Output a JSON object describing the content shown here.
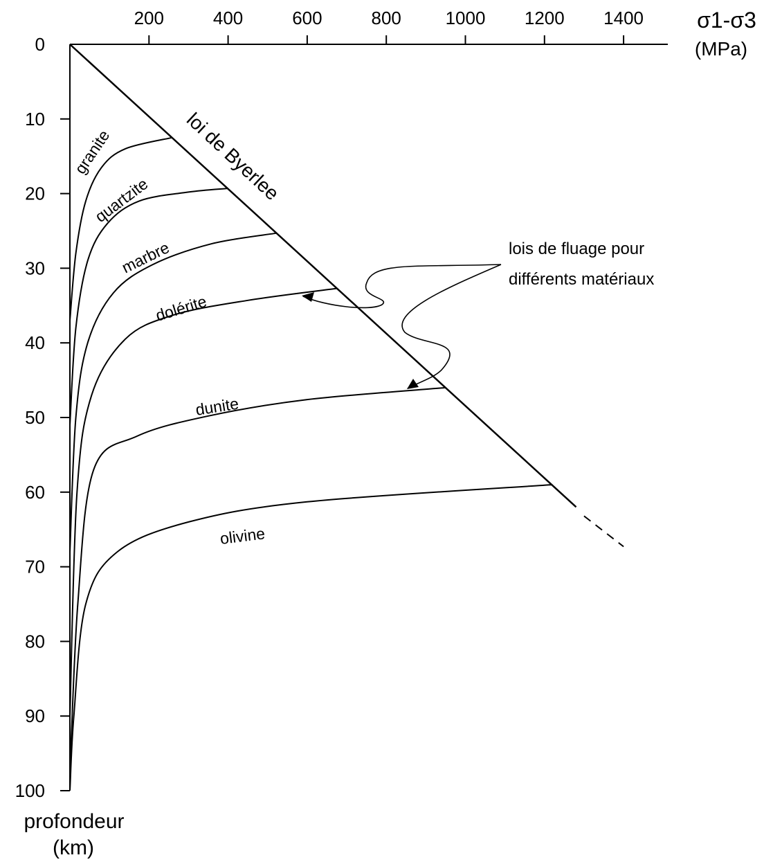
{
  "chart_data": {
    "type": "line",
    "x_axis": {
      "label_line1": "σ1-σ3",
      "label_line2": "(MPa)",
      "position": "top",
      "range": [
        0,
        1500
      ],
      "ticks": [
        200,
        400,
        600,
        800,
        1000,
        1200,
        1400
      ]
    },
    "y_axis": {
      "label_line1": "profondeur",
      "label_line2": "(km)",
      "inverted": true,
      "range": [
        0,
        100
      ],
      "ticks": [
        0,
        10,
        20,
        30,
        40,
        50,
        60,
        70,
        80,
        90,
        100
      ]
    },
    "byerlee": {
      "label": "loi de Byerlee",
      "points": [
        [
          0,
          0
        ],
        [
          1280,
          62
        ]
      ],
      "dashed_extension": [
        [
          1300,
          63.2
        ],
        [
          1400,
          67.3
        ]
      ]
    },
    "series": [
      {
        "name": "granite",
        "points": [
          [
            0,
            37
          ],
          [
            15,
            28
          ],
          [
            40,
            21
          ],
          [
            80,
            16.5
          ],
          [
            140,
            14
          ],
          [
            258,
            12.5
          ]
        ]
      },
      {
        "name": "quartzite",
        "points": [
          [
            0,
            51
          ],
          [
            15,
            38
          ],
          [
            45,
            29
          ],
          [
            95,
            24
          ],
          [
            175,
            21
          ],
          [
            300,
            19.8
          ],
          [
            399,
            19.3
          ]
        ]
      },
      {
        "name": "marbre",
        "points": [
          [
            0,
            68
          ],
          [
            15,
            50
          ],
          [
            45,
            40
          ],
          [
            110,
            33.3
          ],
          [
            210,
            29.5
          ],
          [
            360,
            26.7
          ],
          [
            523,
            25.3
          ]
        ]
      },
      {
        "name": "dolérite",
        "points": [
          [
            0,
            90
          ],
          [
            18,
            60
          ],
          [
            55,
            47
          ],
          [
            140,
            39.5
          ],
          [
            260,
            36.3
          ],
          [
            450,
            34.3
          ],
          [
            676,
            32.7
          ]
        ]
      },
      {
        "name": "dunite",
        "points": [
          [
            0,
            98
          ],
          [
            20,
            75
          ],
          [
            60,
            57
          ],
          [
            170,
            52.5
          ],
          [
            350,
            49.8
          ],
          [
            600,
            47.6
          ],
          [
            950,
            46.0
          ]
        ]
      },
      {
        "name": "olivine",
        "points": [
          [
            0,
            100
          ],
          [
            10,
            90
          ],
          [
            40,
            75
          ],
          [
            120,
            68
          ],
          [
            300,
            64
          ],
          [
            600,
            61.3
          ],
          [
            1220,
            59.0
          ]
        ]
      }
    ],
    "annotation": {
      "line1": "lois de fluage pour",
      "line2": "différents matériaux",
      "targets": [
        "dolérite",
        "dunite"
      ]
    }
  }
}
